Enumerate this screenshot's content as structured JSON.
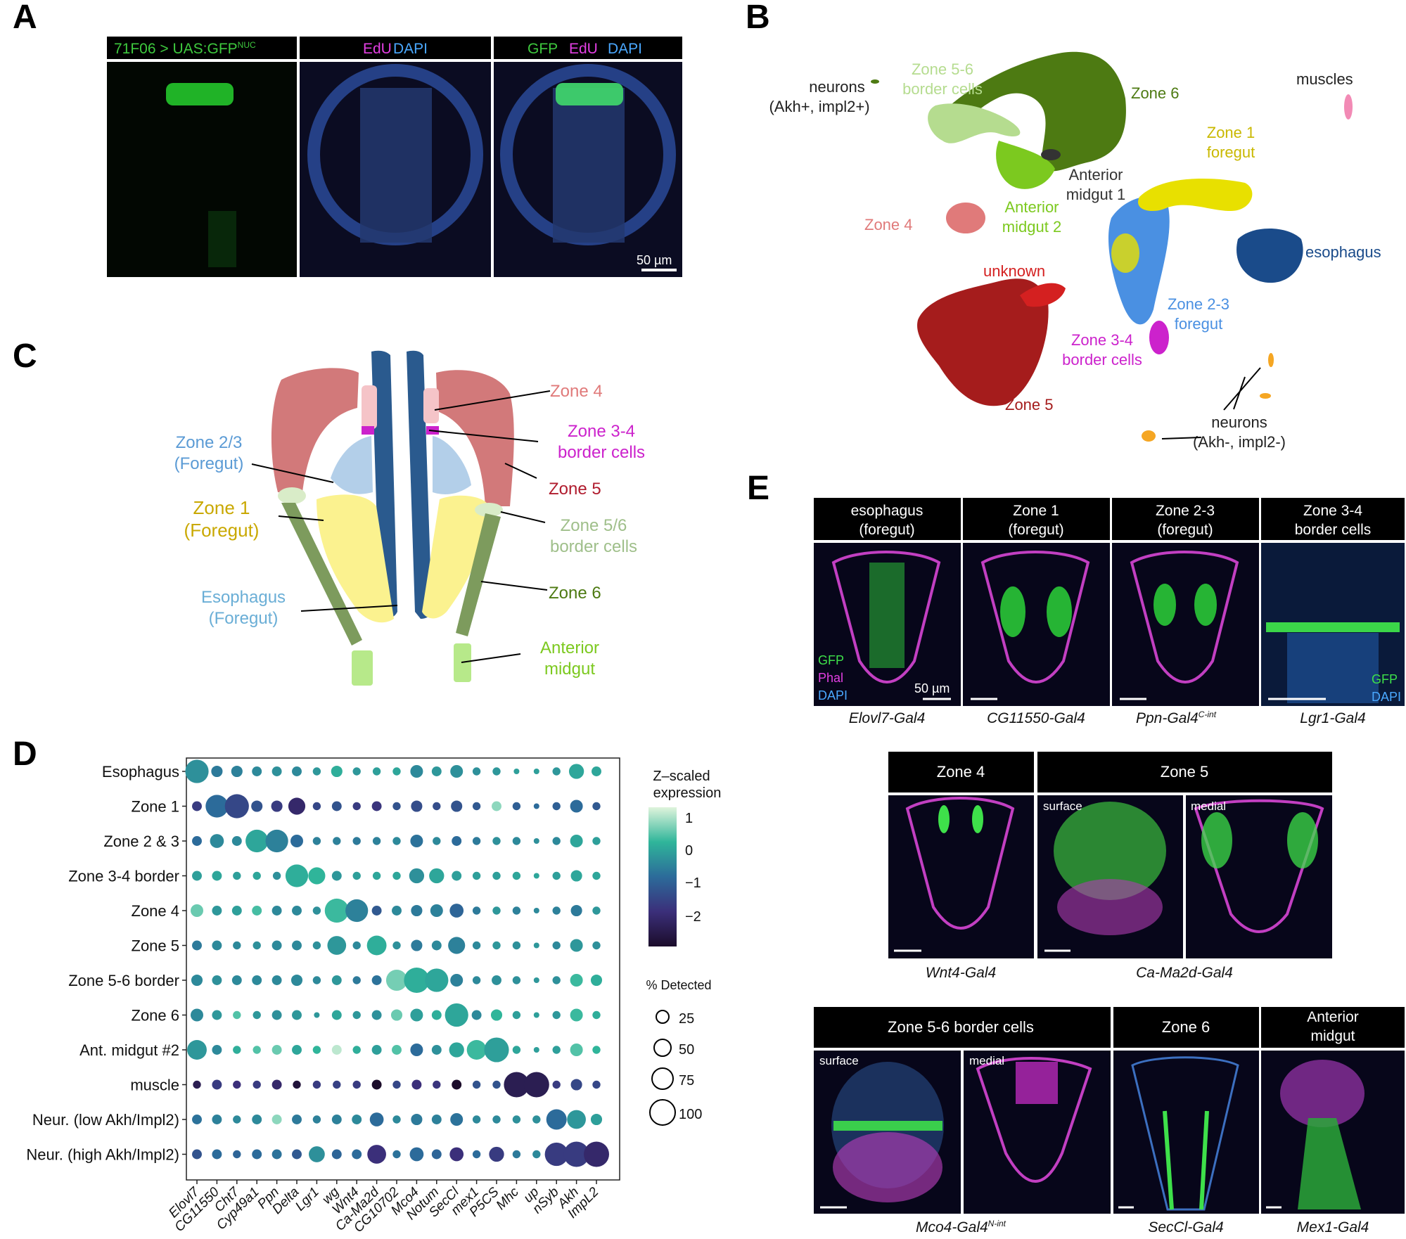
{
  "panels": {
    "A": {
      "letter": "A",
      "headers": [
        "71F06 > UAS:GFP",
        "EdU",
        "DAPI",
        "GFP",
        "EdU",
        "DAPI"
      ],
      "nuc_superscript": "NUC",
      "scalebar": "50 µm"
    },
    "B": {
      "letter": "B",
      "clusters": [
        {
          "label": "neurons",
          "line2": "(Akh+, impl2+)",
          "color": "#222222"
        },
        {
          "label": "Zone 5-6",
          "line2": "border cells",
          "color": "#b5dc8f"
        },
        {
          "label": "Zone 6",
          "line2": "",
          "color": "#4d7a12"
        },
        {
          "label": "muscles",
          "line2": "",
          "color": "#222222"
        },
        {
          "label": "Zone 1",
          "line2": "foregut",
          "color": "#c9b800"
        },
        {
          "label": "Anterior",
          "line2": "midgut 1",
          "color": "#333333"
        },
        {
          "label": "Anterior",
          "line2": "midgut 2",
          "color": "#7cc91f"
        },
        {
          "label": "Zone 4",
          "line2": "",
          "color": "#e07a7a"
        },
        {
          "label": "esophagus",
          "line2": "",
          "color": "#1a4b8a"
        },
        {
          "label": "unknown",
          "line2": "",
          "color": "#d42020"
        },
        {
          "label": "Zone 2-3",
          "line2": "foregut",
          "color": "#4a90e2"
        },
        {
          "label": "Zone 3-4",
          "line2": "border cells",
          "color": "#cc22cc"
        },
        {
          "label": "Zone 5",
          "line2": "",
          "color": "#a51c1c"
        },
        {
          "label": "neurons",
          "line2": "(Akh-, impl2-)",
          "color": "#222222"
        }
      ]
    },
    "C": {
      "letter": "C",
      "labels": [
        {
          "t1": "Zone 4",
          "t2": "",
          "color": "#e07a7a"
        },
        {
          "t1": "Zone 3-4",
          "t2": "border cells",
          "color": "#cc22cc"
        },
        {
          "t1": "Zone 2/3",
          "t2": "(Foregut)",
          "color": "#5b9bd5"
        },
        {
          "t1": "Zone 5",
          "t2": "",
          "color": "#b01c2e"
        },
        {
          "t1": "Zone 1",
          "t2": "(Foregut)",
          "color": "#c9a800"
        },
        {
          "t1": "Zone 5/6",
          "t2": "border cells",
          "color": "#9fbf8a"
        },
        {
          "t1": "Esophagus",
          "t2": "(Foregut)",
          "color": "#6aaed6"
        },
        {
          "t1": "Zone 6",
          "t2": "",
          "color": "#4d7a12"
        },
        {
          "t1": "Anterior",
          "t2": "midgut",
          "color": "#7cc91f"
        }
      ]
    },
    "D": {
      "letter": "D",
      "legend_title1": "Z–scaled",
      "legend_title2": "expression",
      "legend_ticks": [
        "1",
        "0",
        "−1",
        "−2"
      ],
      "size_title": "% Detected",
      "size_ticks": [
        "25",
        "50",
        "75",
        "100"
      ]
    },
    "E": {
      "letter": "E",
      "row1": [
        {
          "h1": "esophagus",
          "h2": "(foregut)",
          "driver": "Elovl7-Gal4"
        },
        {
          "h1": "Zone 1",
          "h2": "(foregut)",
          "driver": "CG11550-Gal4"
        },
        {
          "h1": "Zone 2-3",
          "h2": "(foregut)",
          "driver": "Ppn-Gal4"
        },
        {
          "h1": "Zone 3-4",
          "h2": "border cells",
          "driver": "Lgr1-Gal4"
        }
      ],
      "ppn_sup": "C-int",
      "legend1": [
        "GFP",
        "Phal",
        "DAPI"
      ],
      "legend_lgr": [
        "GFP",
        "DAPI"
      ],
      "scale": "50 µm",
      "row2": [
        {
          "h": "Zone 4",
          "driver": "Wnt4-Gal4"
        },
        {
          "h": "Zone 5",
          "driver": "Ca-Ma2d-Gal4"
        }
      ],
      "row2_sub": [
        "surface",
        "medial"
      ],
      "row3": [
        {
          "h": "Zone 5-6 border cells",
          "driver": "Mco4-Gal4"
        },
        {
          "h": "Zone 6",
          "driver": "SecCl-Gal4"
        },
        {
          "h1": "Anterior",
          "h2": "midgut",
          "driver": "Mex1-Gal4"
        }
      ],
      "mco_sup": "N-int",
      "row3_sub": [
        "surface",
        "medial"
      ]
    }
  },
  "chart_data": {
    "type": "dotplot",
    "title": "",
    "xlabel": "",
    "ylabel": "",
    "genes": [
      "Elovl7",
      "CG11550",
      "Cht7",
      "Cyp49a1",
      "Ppn",
      "Delta",
      "Lgr1",
      "wg",
      "Wnt4",
      "Ca-Ma2d",
      "CG10702",
      "Mco4",
      "Notum",
      "SecCl",
      "mex1",
      "P5CS",
      "Mhc",
      "up",
      "nSyb",
      "Akh",
      "ImpL2"
    ],
    "rows": [
      "Esophagus",
      "Zone 1",
      "Zone 2 & 3",
      "Zone 3-4 border",
      "Zone 4",
      "Zone 5",
      "Zone 5-6 border",
      "Zone 6",
      "Ant. midgut #2",
      "muscle",
      "Neur. (low Akh/Impl2)",
      "Neur. (high Akh/Impl2)"
    ],
    "color_range": [
      -3,
      1.5
    ],
    "pct_detected": [
      [
        85,
        20,
        20,
        15,
        15,
        15,
        10,
        20,
        10,
        10,
        10,
        25,
        15,
        25,
        10,
        10,
        5,
        5,
        10,
        35,
        15
      ],
      [
        15,
        80,
        90,
        20,
        20,
        45,
        10,
        15,
        10,
        15,
        10,
        20,
        10,
        20,
        10,
        15,
        10,
        5,
        10,
        25,
        10
      ],
      [
        15,
        30,
        15,
        80,
        80,
        25,
        10,
        10,
        10,
        10,
        10,
        25,
        10,
        15,
        10,
        10,
        10,
        5,
        10,
        25,
        10
      ],
      [
        15,
        15,
        10,
        10,
        10,
        80,
        45,
        15,
        10,
        10,
        10,
        35,
        35,
        15,
        10,
        10,
        10,
        5,
        10,
        20,
        10
      ],
      [
        25,
        15,
        15,
        15,
        15,
        15,
        10,
        90,
        80,
        15,
        15,
        20,
        25,
        30,
        10,
        10,
        10,
        5,
        10,
        20,
        10
      ],
      [
        15,
        15,
        10,
        10,
        15,
        15,
        10,
        55,
        10,
        60,
        10,
        20,
        15,
        45,
        10,
        10,
        10,
        5,
        10,
        25,
        10
      ],
      [
        20,
        15,
        15,
        15,
        15,
        20,
        10,
        15,
        10,
        15,
        70,
        100,
        85,
        25,
        10,
        15,
        10,
        5,
        10,
        25,
        20
      ],
      [
        25,
        15,
        10,
        10,
        15,
        15,
        5,
        15,
        10,
        15,
        20,
        25,
        15,
        85,
        15,
        20,
        10,
        5,
        10,
        25,
        10
      ],
      [
        60,
        15,
        10,
        10,
        15,
        15,
        10,
        15,
        10,
        15,
        15,
        25,
        15,
        35,
        60,
        95,
        10,
        5,
        10,
        25,
        10
      ],
      [
        10,
        15,
        10,
        10,
        15,
        10,
        10,
        10,
        10,
        15,
        10,
        15,
        10,
        15,
        10,
        10,
        100,
        100,
        10,
        20,
        10
      ],
      [
        15,
        15,
        10,
        15,
        15,
        15,
        10,
        15,
        15,
        30,
        10,
        20,
        15,
        25,
        10,
        10,
        10,
        10,
        65,
        55,
        20
      ],
      [
        15,
        15,
        10,
        15,
        15,
        15,
        40,
        15,
        15,
        55,
        10,
        30,
        15,
        30,
        10,
        35,
        10,
        10,
        85,
        100,
        100
      ]
    ],
    "zscore": [
      [
        -0.5,
        -0.8,
        -0.7,
        -0.6,
        -0.5,
        -0.6,
        -0.4,
        -0.1,
        -0.4,
        -0.3,
        -0.2,
        -0.6,
        -0.4,
        -0.5,
        -0.5,
        -0.4,
        -0.3,
        -0.3,
        -0.4,
        -0.2,
        -0.2
      ],
      [
        -1.8,
        -1.0,
        -1.6,
        -1.4,
        -1.8,
        -2.2,
        -1.6,
        -1.4,
        -1.8,
        -1.9,
        -1.4,
        -1.5,
        -1.5,
        -1.4,
        -1.3,
        0.8,
        -1.2,
        -1.0,
        -1.2,
        -1.0,
        -1.3
      ],
      [
        -1.0,
        -0.6,
        -0.6,
        -0.2,
        -0.7,
        -1.0,
        -0.7,
        -0.7,
        -0.8,
        -0.7,
        -0.6,
        -0.9,
        -0.6,
        -1.0,
        -0.8,
        -0.5,
        -0.6,
        -0.5,
        -0.6,
        -0.2,
        -0.3
      ],
      [
        -0.3,
        -0.2,
        -0.3,
        -0.2,
        -0.5,
        -0.1,
        0.0,
        -0.4,
        -0.3,
        -0.2,
        -0.2,
        -0.5,
        -0.2,
        -0.3,
        -0.3,
        -0.3,
        -0.2,
        -0.2,
        -0.3,
        -0.2,
        -0.2
      ],
      [
        0.5,
        -0.4,
        -0.3,
        0.2,
        -0.6,
        -0.6,
        -0.5,
        0.1,
        -0.7,
        -1.3,
        -0.6,
        -0.8,
        -0.7,
        -1.1,
        -0.8,
        -0.4,
        -0.7,
        -0.6,
        -0.7,
        -0.8,
        -0.4
      ],
      [
        -0.8,
        -0.6,
        -0.6,
        -0.5,
        -0.6,
        -0.6,
        -0.5,
        -0.4,
        -0.6,
        -0.1,
        -0.5,
        -0.8,
        -0.6,
        -0.7,
        -0.6,
        -0.4,
        -0.5,
        -0.4,
        -0.6,
        -0.4,
        -0.5
      ],
      [
        -0.6,
        -0.5,
        -0.6,
        -0.6,
        -0.6,
        -0.6,
        -0.6,
        -0.4,
        -0.8,
        -0.9,
        0.6,
        -0.1,
        -0.2,
        -0.7,
        -0.6,
        -0.5,
        -0.5,
        -0.4,
        -0.5,
        0.1,
        -0.1
      ],
      [
        -0.6,
        -0.4,
        0.3,
        -0.4,
        -0.5,
        -0.4,
        -0.4,
        -0.2,
        -0.4,
        -0.5,
        0.5,
        -0.3,
        -0.1,
        -0.2,
        -0.6,
        0.0,
        -0.3,
        -0.3,
        -0.4,
        0.1,
        -0.1
      ],
      [
        -0.4,
        -0.6,
        -0.1,
        0.3,
        0.5,
        -0.2,
        0.0,
        1.2,
        -0.1,
        -0.3,
        0.3,
        -1.0,
        -0.5,
        -0.2,
        0.1,
        -0.3,
        -0.2,
        -0.3,
        -0.3,
        0.3,
        0.0
      ],
      [
        -2.5,
        -1.8,
        -2.0,
        -1.8,
        -2.2,
        -2.8,
        -1.8,
        -1.7,
        -1.8,
        -3.0,
        -1.6,
        -2.0,
        -1.9,
        -3.0,
        -1.4,
        -1.4,
        -2.5,
        -2.5,
        -1.8,
        -1.6,
        -1.6
      ],
      [
        -0.9,
        -0.7,
        -0.6,
        -0.6,
        0.8,
        -0.8,
        -0.7,
        -0.7,
        -0.6,
        -1.0,
        -0.6,
        -0.8,
        -0.7,
        -0.9,
        -0.6,
        -0.6,
        -0.5,
        -0.5,
        -1.0,
        -0.4,
        -0.3
      ],
      [
        -1.4,
        -1.0,
        -1.1,
        -1.0,
        -0.9,
        -1.3,
        -0.5,
        -1.1,
        -1.0,
        -2.0,
        -0.9,
        -1.0,
        -1.1,
        -2.0,
        -1.0,
        -1.8,
        -0.8,
        -0.6,
        -1.8,
        -1.8,
        -2.2
      ]
    ]
  }
}
